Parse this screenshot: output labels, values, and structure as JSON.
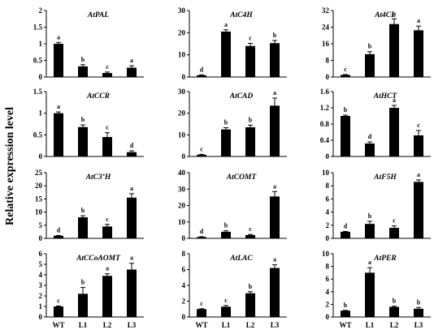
{
  "ylabel": "Relative expression level",
  "chart_data": [
    {
      "type": "bar",
      "title": "AtPAL",
      "categories": [
        "WT",
        "L1",
        "L2",
        "L3"
      ],
      "values": [
        1.0,
        0.32,
        0.12,
        0.28
      ],
      "errors": [
        0.04,
        0.05,
        0.03,
        0.06
      ],
      "letters": [
        "a",
        "b",
        "c",
        "a"
      ],
      "ylim": [
        0,
        2
      ],
      "yticks": [
        "0",
        "0.5",
        "1",
        "1.5",
        "2"
      ],
      "show_x_labels": false
    },
    {
      "type": "bar",
      "title": "AtC4H",
      "categories": [
        "WT",
        "L1",
        "L2",
        "L3"
      ],
      "values": [
        0.8,
        20.5,
        14.0,
        15.3
      ],
      "errors": [
        0.2,
        0.8,
        1.2,
        1.2
      ],
      "letters": [
        "d",
        "a",
        "c",
        "b"
      ],
      "ylim": [
        0,
        30
      ],
      "yticks": [
        "0",
        "10",
        "20",
        "30"
      ],
      "show_x_labels": false
    },
    {
      "type": "bar",
      "title": "At4CL",
      "categories": [
        "WT",
        "L1",
        "L2",
        "L3"
      ],
      "values": [
        1.0,
        11.0,
        25.5,
        22.5
      ],
      "errors": [
        0.2,
        1.2,
        2.5,
        2.0
      ],
      "letters": [
        "c",
        "b",
        "a",
        "a"
      ],
      "ylim": [
        0,
        32
      ],
      "yticks": [
        "0",
        "8",
        "16",
        "24",
        "32"
      ],
      "show_x_labels": false
    },
    {
      "type": "bar",
      "title": "AtCCR",
      "categories": [
        "WT",
        "L1",
        "L2",
        "L3"
      ],
      "values": [
        1.0,
        0.68,
        0.45,
        0.1
      ],
      "errors": [
        0.03,
        0.05,
        0.1,
        0.03
      ],
      "letters": [
        "a",
        "b",
        "c",
        "d"
      ],
      "ylim": [
        0,
        1.5
      ],
      "yticks": [
        "0",
        "0.5",
        "1",
        "1.5"
      ],
      "show_x_labels": false
    },
    {
      "type": "bar",
      "title": "AtCAD",
      "categories": [
        "WT",
        "L1",
        "L2",
        "L3"
      ],
      "values": [
        0.8,
        12.5,
        13.5,
        23.5
      ],
      "errors": [
        0.2,
        0.8,
        1.0,
        3.5
      ],
      "letters": [
        "c",
        "b",
        "b",
        "a"
      ],
      "ylim": [
        0,
        30
      ],
      "yticks": [
        "0",
        "10",
        "20",
        "30"
      ],
      "show_x_labels": false
    },
    {
      "type": "bar",
      "title": "AtHCT",
      "categories": [
        "WT",
        "L1",
        "L2",
        "L3"
      ],
      "values": [
        1.0,
        0.32,
        1.2,
        0.52
      ],
      "errors": [
        0.02,
        0.04,
        0.06,
        0.12
      ],
      "letters": [
        "b",
        "d",
        "a",
        "c"
      ],
      "ylim": [
        0,
        1.6
      ],
      "yticks": [
        "0",
        "0.4",
        "0.8",
        "1.2",
        "1.6"
      ],
      "show_x_labels": false
    },
    {
      "type": "bar",
      "title": "AtC3’H",
      "categories": [
        "WT",
        "L1",
        "L2",
        "L3"
      ],
      "values": [
        1.0,
        8.0,
        4.5,
        15.5
      ],
      "errors": [
        0.1,
        0.6,
        0.8,
        1.5
      ],
      "letters": [
        "d",
        "b",
        "c",
        "a"
      ],
      "ylim": [
        0,
        25
      ],
      "yticks": [
        "0",
        "5",
        "10",
        "15",
        "20",
        "25"
      ],
      "show_x_labels": false
    },
    {
      "type": "bar",
      "title": "AtCOMT",
      "categories": [
        "WT",
        "L1",
        "L2",
        "L3"
      ],
      "values": [
        0.8,
        4.0,
        2.0,
        25.5
      ],
      "errors": [
        0.2,
        0.6,
        0.4,
        3.0
      ],
      "letters": [
        "d",
        "b",
        "c",
        "a"
      ],
      "ylim": [
        0,
        40
      ],
      "yticks": [
        "0",
        "10",
        "20",
        "30",
        "40"
      ],
      "show_x_labels": false
    },
    {
      "type": "bar",
      "title": "AtF5H",
      "categories": [
        "WT",
        "L1",
        "L2",
        "L3"
      ],
      "values": [
        1.0,
        2.2,
        1.6,
        8.6
      ],
      "errors": [
        0.05,
        0.4,
        0.3,
        0.3
      ],
      "letters": [
        "d",
        "b",
        "c",
        "a"
      ],
      "ylim": [
        0,
        10
      ],
      "yticks": [
        "0",
        "2",
        "4",
        "6",
        "8",
        "10"
      ],
      "show_x_labels": false
    },
    {
      "type": "bar",
      "title": "AtCCoAOMT",
      "categories": [
        "WT",
        "L1",
        "L2",
        "L3"
      ],
      "values": [
        1.0,
        2.2,
        3.9,
        4.5
      ],
      "errors": [
        0.05,
        0.6,
        0.2,
        0.6
      ],
      "letters": [
        "c",
        "b",
        "a",
        "a"
      ],
      "ylim": [
        0,
        6
      ],
      "yticks": [
        "0",
        "1",
        "2",
        "3",
        "4",
        "5",
        "6"
      ],
      "show_x_labels": true
    },
    {
      "type": "bar",
      "title": "AtLAC",
      "categories": [
        "WT",
        "L1",
        "L2",
        "L3"
      ],
      "values": [
        1.0,
        1.3,
        3.0,
        6.2
      ],
      "errors": [
        0.05,
        0.15,
        0.2,
        0.4
      ],
      "letters": [
        "c",
        "c",
        "b",
        "a"
      ],
      "ylim": [
        0,
        8
      ],
      "yticks": [
        "0",
        "2",
        "4",
        "6",
        "8"
      ],
      "show_x_labels": true
    },
    {
      "type": "bar",
      "title": "AtPER",
      "categories": [
        "WT",
        "L1",
        "L2",
        "L3"
      ],
      "values": [
        1.0,
        7.0,
        1.6,
        1.3
      ],
      "errors": [
        0.05,
        0.8,
        0.1,
        0.2
      ],
      "letters": [
        "b",
        "a",
        "b",
        "b"
      ],
      "ylim": [
        0,
        10
      ],
      "yticks": [
        "0",
        "2",
        "4",
        "6",
        "8",
        "10"
      ],
      "show_x_labels": true
    }
  ]
}
